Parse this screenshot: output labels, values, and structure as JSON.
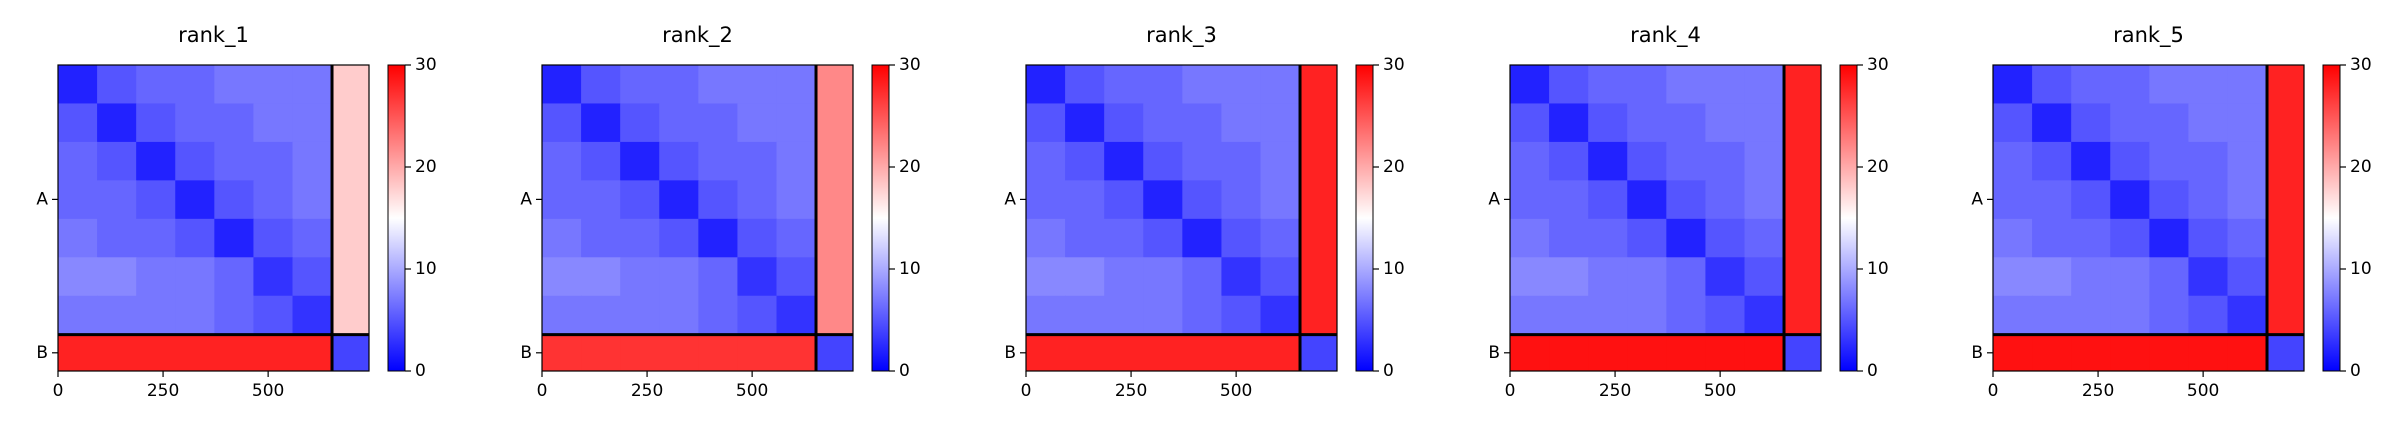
{
  "chart_data": [
    {
      "type": "heatmap",
      "title": "rank_1",
      "colormap": "bwr",
      "bins": [
        0,
        93,
        186,
        279,
        372,
        465,
        558,
        652,
        740
      ],
      "values": [
        [
          2,
          5,
          6,
          6,
          7,
          7,
          7,
          18
        ],
        [
          5,
          2,
          5,
          6,
          6,
          7,
          7,
          18
        ],
        [
          6,
          5,
          2,
          5,
          6,
          6,
          7,
          18
        ],
        [
          6,
          6,
          5,
          2,
          5,
          6,
          7,
          18
        ],
        [
          7,
          6,
          6,
          5,
          2,
          5,
          6,
          18
        ],
        [
          8,
          8,
          7,
          7,
          6,
          3,
          5,
          18
        ],
        [
          7,
          7,
          7,
          7,
          6,
          5,
          3,
          18
        ],
        [
          28,
          28,
          28,
          28,
          28,
          28,
          28,
          4
        ]
      ],
      "xlim": [
        0,
        740
      ],
      "ylim": [
        740,
        0
      ],
      "xticks": [
        0,
        250,
        500
      ],
      "yticks": [
        {
          "value": 325,
          "label": "A"
        },
        {
          "value": 696,
          "label": "B"
        }
      ],
      "chain_breaks": [
        652
      ],
      "clim": [
        0,
        30
      ],
      "cticks": [
        0,
        10,
        20,
        30
      ]
    },
    {
      "type": "heatmap",
      "title": "rank_2",
      "colormap": "bwr",
      "bins": [
        0,
        93,
        186,
        279,
        372,
        465,
        558,
        652,
        740
      ],
      "values": [
        [
          2,
          5,
          6,
          6,
          7,
          7,
          7,
          22
        ],
        [
          5,
          2,
          5,
          6,
          6,
          7,
          7,
          22
        ],
        [
          6,
          5,
          2,
          5,
          6,
          6,
          7,
          22
        ],
        [
          6,
          6,
          5,
          2,
          5,
          6,
          7,
          22
        ],
        [
          7,
          6,
          6,
          5,
          2,
          5,
          6,
          22
        ],
        [
          8,
          8,
          7,
          7,
          6,
          3,
          5,
          22
        ],
        [
          7,
          7,
          7,
          7,
          6,
          5,
          3,
          22
        ],
        [
          27,
          27,
          27,
          27,
          27,
          27,
          27,
          4
        ]
      ],
      "xlim": [
        0,
        740
      ],
      "ylim": [
        740,
        0
      ],
      "xticks": [
        0,
        250,
        500
      ],
      "yticks": [
        {
          "value": 325,
          "label": "A"
        },
        {
          "value": 696,
          "label": "B"
        }
      ],
      "chain_breaks": [
        652
      ],
      "clim": [
        0,
        30
      ],
      "cticks": [
        0,
        10,
        20,
        30
      ]
    },
    {
      "type": "heatmap",
      "title": "rank_3",
      "colormap": "bwr",
      "bins": [
        0,
        93,
        186,
        279,
        372,
        465,
        558,
        652,
        740
      ],
      "values": [
        [
          2,
          5,
          6,
          6,
          7,
          7,
          7,
          28
        ],
        [
          5,
          2,
          5,
          6,
          6,
          7,
          7,
          28
        ],
        [
          6,
          5,
          2,
          5,
          6,
          6,
          7,
          28
        ],
        [
          6,
          6,
          5,
          2,
          5,
          6,
          7,
          28
        ],
        [
          7,
          6,
          6,
          5,
          2,
          5,
          6,
          28
        ],
        [
          8,
          8,
          7,
          7,
          6,
          3,
          5,
          28
        ],
        [
          7,
          7,
          7,
          7,
          6,
          5,
          3,
          28
        ],
        [
          28,
          28,
          28,
          28,
          28,
          28,
          28,
          4
        ]
      ],
      "xlim": [
        0,
        740
      ],
      "ylim": [
        740,
        0
      ],
      "xticks": [
        0,
        250,
        500
      ],
      "yticks": [
        {
          "value": 325,
          "label": "A"
        },
        {
          "value": 696,
          "label": "B"
        }
      ],
      "chain_breaks": [
        652
      ],
      "clim": [
        0,
        30
      ],
      "cticks": [
        0,
        10,
        20,
        30
      ]
    },
    {
      "type": "heatmap",
      "title": "rank_4",
      "colormap": "bwr",
      "bins": [
        0,
        93,
        186,
        279,
        372,
        465,
        558,
        652,
        740
      ],
      "values": [
        [
          2,
          5,
          6,
          6,
          7,
          7,
          7,
          28
        ],
        [
          5,
          2,
          5,
          6,
          6,
          7,
          7,
          28
        ],
        [
          6,
          5,
          2,
          5,
          6,
          6,
          7,
          28
        ],
        [
          6,
          6,
          5,
          2,
          5,
          6,
          7,
          28
        ],
        [
          7,
          6,
          6,
          5,
          2,
          5,
          6,
          28
        ],
        [
          8,
          8,
          7,
          7,
          6,
          3,
          5,
          28
        ],
        [
          7,
          7,
          7,
          7,
          6,
          5,
          3,
          28
        ],
        [
          29,
          29,
          29,
          29,
          29,
          29,
          29,
          4
        ]
      ],
      "xlim": [
        0,
        740
      ],
      "ylim": [
        740,
        0
      ],
      "xticks": [
        0,
        250,
        500
      ],
      "yticks": [
        {
          "value": 325,
          "label": "A"
        },
        {
          "value": 696,
          "label": "B"
        }
      ],
      "chain_breaks": [
        652
      ],
      "clim": [
        0,
        30
      ],
      "cticks": [
        0,
        10,
        20,
        30
      ]
    },
    {
      "type": "heatmap",
      "title": "rank_5",
      "colormap": "bwr",
      "bins": [
        0,
        93,
        186,
        279,
        372,
        465,
        558,
        652,
        740
      ],
      "values": [
        [
          2,
          5,
          6,
          6,
          7,
          7,
          7,
          28
        ],
        [
          5,
          2,
          5,
          6,
          6,
          7,
          7,
          28
        ],
        [
          6,
          5,
          2,
          5,
          6,
          6,
          7,
          28
        ],
        [
          6,
          6,
          5,
          2,
          5,
          6,
          7,
          28
        ],
        [
          7,
          6,
          6,
          5,
          2,
          5,
          6,
          28
        ],
        [
          8,
          8,
          7,
          7,
          6,
          3,
          5,
          28
        ],
        [
          7,
          7,
          7,
          7,
          6,
          5,
          3,
          28
        ],
        [
          29,
          29,
          29,
          29,
          29,
          29,
          29,
          4
        ]
      ],
      "xlim": [
        0,
        740
      ],
      "ylim": [
        740,
        0
      ],
      "xticks": [
        0,
        250,
        500
      ],
      "yticks": [
        {
          "value": 325,
          "label": "A"
        },
        {
          "value": 696,
          "label": "B"
        }
      ],
      "chain_breaks": [
        652
      ],
      "clim": [
        0,
        30
      ],
      "cticks": [
        0,
        10,
        20,
        30
      ]
    }
  ]
}
